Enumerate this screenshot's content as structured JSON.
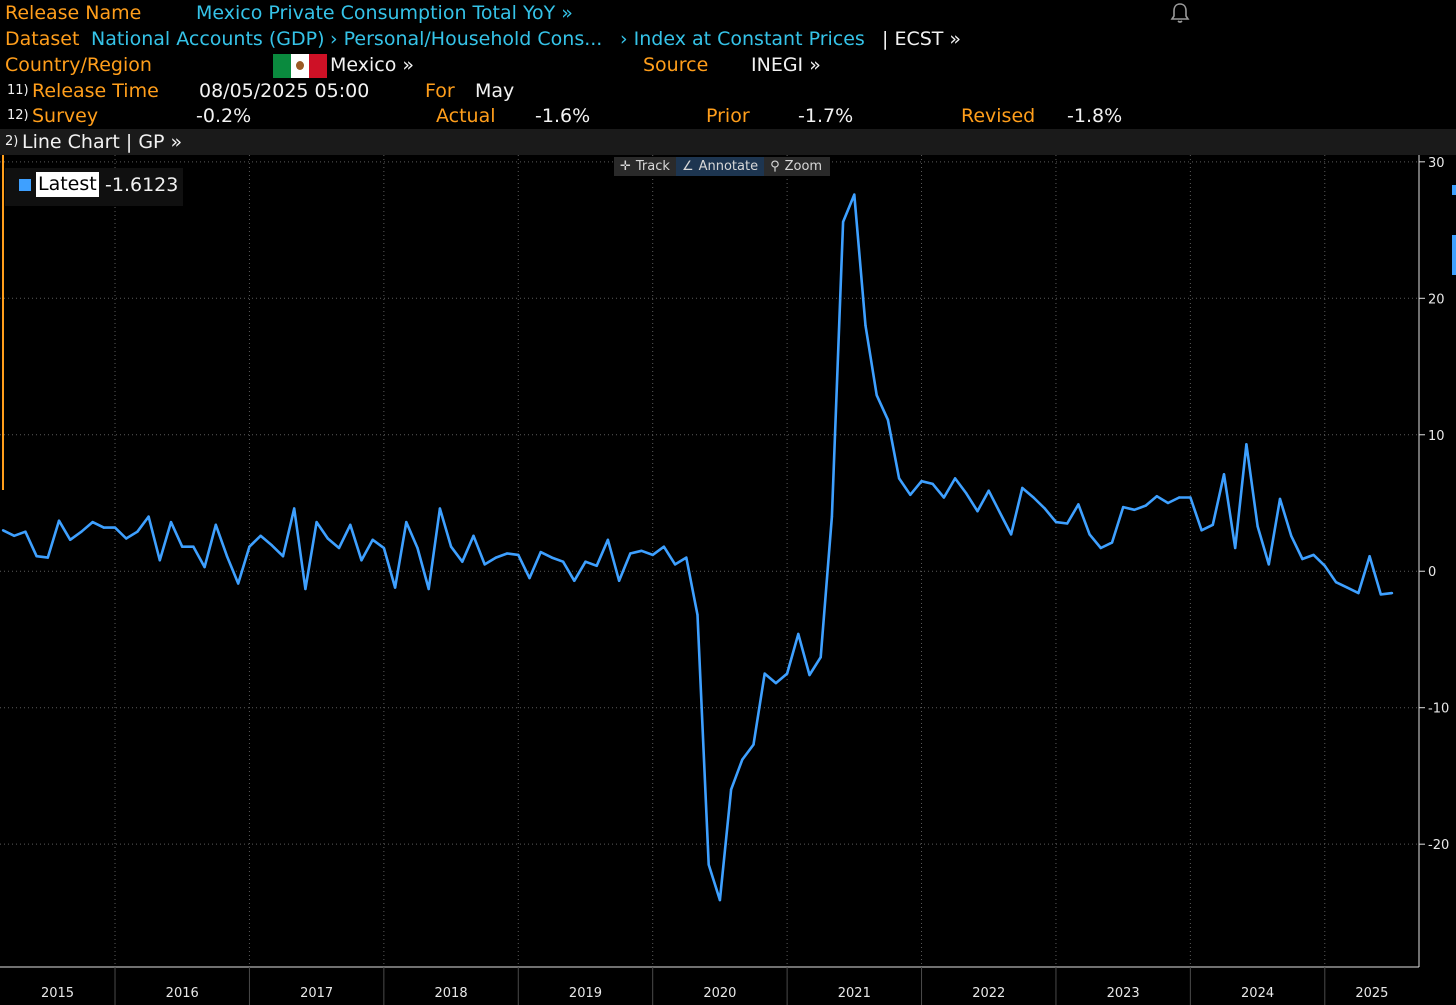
{
  "header": {
    "release_name_label": "Release Name",
    "release_name": "Mexico Private Consumption Total YoY »",
    "dataset_label": "Dataset",
    "dataset_1": "National Accounts (GDP)",
    "dataset_2": "› Personal/Household Cons...",
    "dataset_3": "› Index at Constant Prices",
    "dataset_4": "| ECST »",
    "country_label": "Country/Region",
    "country": "Mexico »",
    "source_label": "Source",
    "source": "INEGI »",
    "release_time_num": "11)",
    "release_time_label": "Release Time",
    "release_time": "08/05/2025 05:00",
    "for_label": "For",
    "for_value": "May",
    "survey_num": "12)",
    "survey_label": "Survey",
    "survey": "-0.2%",
    "actual_label": "Actual",
    "actual": "-1.6%",
    "prior_label": "Prior",
    "prior": "-1.7%",
    "revised_label": "Revised",
    "revised": "-1.8%"
  },
  "chart_bar": {
    "num": "2)",
    "title": "Line Chart | GP »"
  },
  "toolbar": {
    "track": "Track",
    "annotate": "Annotate",
    "zoom": "Zoom"
  },
  "legend": {
    "label": "Latest",
    "value": "-1.6123"
  },
  "colors": {
    "line": "#3ea0ff",
    "orange": "#ff9e1b",
    "cyan": "#35c3e8",
    "background": "#000000"
  },
  "chart_data": {
    "type": "line",
    "series": [
      {
        "values": [
          3.0,
          2.6,
          2.9,
          1.1,
          1.0,
          3.7,
          2.3,
          2.9,
          3.6,
          3.2,
          3.2,
          2.4,
          2.9,
          4.0,
          0.8,
          3.6,
          1.8,
          1.8,
          0.3,
          3.4,
          1.1,
          -0.9,
          1.8,
          2.6,
          1.9,
          1.1,
          4.6,
          -1.3,
          3.6,
          2.4,
          1.7,
          3.4,
          0.8,
          2.3,
          1.7,
          -1.2,
          3.6,
          1.7,
          -1.3,
          4.6,
          1.8,
          0.7,
          2.6,
          0.5,
          1.0,
          1.3,
          1.2,
          -0.5,
          1.4,
          1.0,
          0.7,
          -0.7,
          0.7,
          0.4,
          2.3,
          -0.7,
          1.3,
          1.5,
          1.2,
          1.8,
          0.5,
          1.0,
          -3.2,
          -21.5,
          -24.1,
          -16.0,
          -13.8,
          -12.7,
          -7.5,
          -8.2,
          -7.5,
          -4.6,
          -7.6,
          -6.3,
          4.0,
          25.6,
          27.6,
          18.0,
          12.9,
          11.1,
          6.8,
          5.6,
          6.6,
          6.4,
          5.4,
          6.8,
          5.7,
          4.4,
          5.9,
          4.3,
          2.7,
          6.1,
          5.4,
          4.6,
          3.6,
          3.5,
          4.9,
          2.7,
          1.7,
          2.1,
          4.7,
          4.5,
          4.8,
          5.5,
          5.0,
          5.4,
          5.4,
          3.0,
          3.4,
          7.1,
          1.7,
          9.3,
          3.3,
          0.5,
          5.3,
          2.6,
          0.9,
          1.2,
          0.4,
          -0.8,
          -1.2,
          -1.6,
          1.1,
          -1.7,
          -1.6
        ]
      }
    ],
    "x_labels": [
      "2015",
      "2016",
      "2017",
      "2018",
      "2019",
      "2020",
      "2021",
      "2022",
      "2023",
      "2024",
      "2025"
    ],
    "y_ticks": [
      30,
      20,
      10,
      0,
      -10,
      -20
    ],
    "ylim": [
      -29,
      30.5
    ],
    "x_start": "2015-03",
    "x_end": "2025-05",
    "grid": true
  }
}
